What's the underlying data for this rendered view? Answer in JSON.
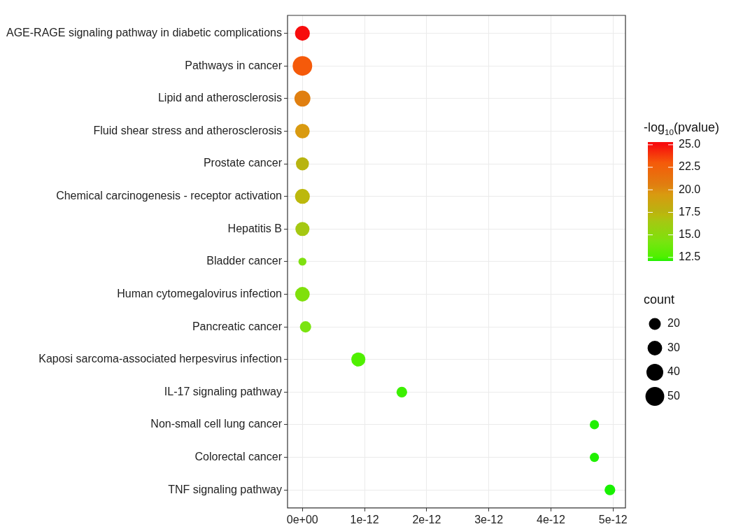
{
  "chart_data": {
    "type": "bubble",
    "orientation": "horizontal",
    "categories": [
      "AGE-RAGE signaling pathway in diabetic complications",
      "Pathways in cancer",
      "Lipid and atherosclerosis",
      "Fluid shear stress and atherosclerosis",
      "Prostate cancer",
      "Chemical carcinogenesis - receptor activation",
      "Hepatitis B",
      "Bladder cancer",
      "Human cytomegalovirus infection",
      "Pancreatic cancer",
      "Kaposi sarcoma-associated herpesvirus infection",
      "IL-17 signaling pathway",
      "Non-small cell lung cancer",
      "Colorectal cancer",
      "TNF signaling pathway"
    ],
    "values": [
      0,
      0,
      0,
      0,
      0,
      0,
      0,
      0,
      0,
      5e-14,
      9e-13,
      1.6e-12,
      4.7e-12,
      4.7e-12,
      4.95e-12
    ],
    "sizes": [
      31,
      54,
      36,
      30,
      24,
      31,
      28,
      9,
      30,
      18,
      28,
      16,
      12,
      12,
      16
    ],
    "cvalues": [
      25.0,
      23.0,
      20.5,
      19.5,
      17.5,
      17.3,
      16.5,
      14.5,
      14.5,
      14.3,
      12.6,
      12.3,
      12.1,
      12.1,
      12.1
    ],
    "colors": [
      "#f70d0d",
      "#f55a0a",
      "#e07f10",
      "#d99a10",
      "#b8b410",
      "#bcb80c",
      "#a5c812",
      "#7fe010",
      "#80e00c",
      "#7ae410",
      "#50f000",
      "#3cf000",
      "#20f000",
      "#20f000",
      "#18f000"
    ],
    "size_legend": [
      20,
      30,
      40,
      50
    ],
    "xlim": [
      -2.4e-13,
      5.2e-12
    ],
    "xticks": [
      {
        "value": 0,
        "label": "0e+00"
      },
      {
        "value": 1e-12,
        "label": "1e-12"
      },
      {
        "value": 2e-12,
        "label": "2e-12"
      },
      {
        "value": 3e-12,
        "label": "3e-12"
      },
      {
        "value": 4e-12,
        "label": "4e-12"
      },
      {
        "value": 5e-12,
        "label": "5e-12"
      }
    ],
    "clabel": "-log$_{10}$(pvalue)",
    "clim": [
      12.1,
      25.3
    ],
    "cticks": [
      12.5,
      {
        "value": 15,
        "label": "15.0"
      },
      17.5,
      {
        "value": 20,
        "label": "20.0"
      },
      22.5,
      {
        "value": 25,
        "label": "25.0"
      }
    ],
    "legend_title": "count",
    "grid": true
  }
}
